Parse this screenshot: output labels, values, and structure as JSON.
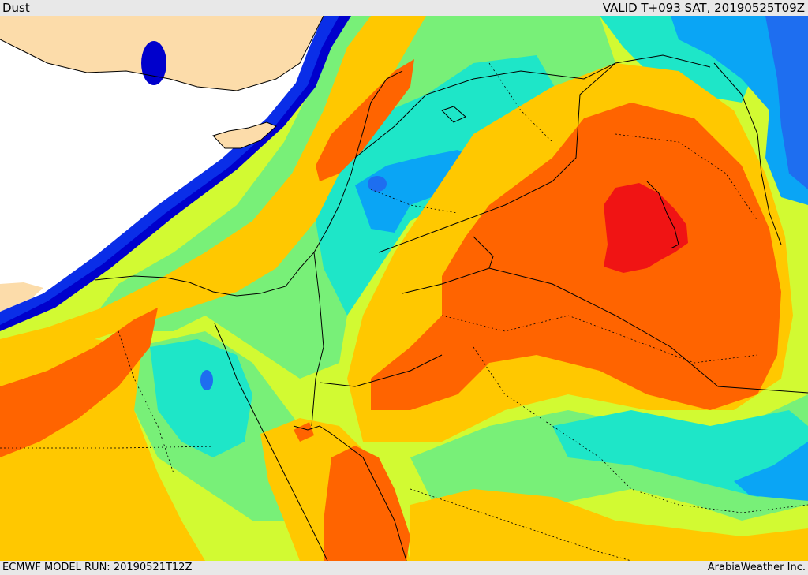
{
  "header": {
    "title": "Dust",
    "valid_time": "VALID T+093 SAT, 20190525T09Z"
  },
  "footer": {
    "model_run": "ECMWF MODEL RUN: 20190521T12Z",
    "credit": "ArabiaWeather Inc."
  },
  "map": {
    "field": "Dust",
    "region": "Eastern Mediterranean, Levant, Iraq, Egypt and northern Arabia",
    "max_location": "southern Iraq",
    "colors": {
      "land": "#fcdcaa",
      "sea_no_data": "#ffffff",
      "level_1": "#0000cc",
      "level_2": "#0a2ee8",
      "level_3": "#1e6ef0",
      "level_4": "#0aa5f5",
      "level_5": "#1ee6c8",
      "level_6": "#78f078",
      "level_7": "#d2fa32",
      "level_8": "#ffc800",
      "level_9": "#ff6400",
      "level_10": "#f01414",
      "border_line": "#000000"
    }
  }
}
